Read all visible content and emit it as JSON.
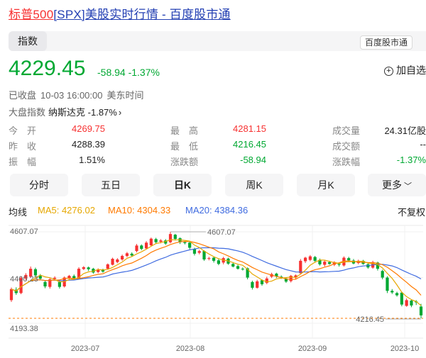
{
  "title": {
    "highlight": "标普500",
    "rest": "[SPX]美股实时行情 - 百度股市通"
  },
  "tab": {
    "label": "指数"
  },
  "badge": {
    "label": "百度股市通"
  },
  "quote": {
    "price": "4229.45",
    "change": "-58.94",
    "change_pct": "-1.37%"
  },
  "add_watch": {
    "label": "加自选"
  },
  "status": {
    "state": "已收盘",
    "time": "10-03 16:00:00",
    "zone": "美东时间"
  },
  "market": {
    "label": "大盘指数",
    "name": "纳斯达克",
    "change": "-1.87%"
  },
  "stats": {
    "open": {
      "label": "今　开",
      "value": "4269.75"
    },
    "prev_close": {
      "label": "昨　收",
      "value": "4288.39"
    },
    "amplitude": {
      "label": "振　幅",
      "value": "1.51%"
    },
    "high": {
      "label": "最　高",
      "value": "4281.15"
    },
    "low": {
      "label": "最　低",
      "value": "4216.45"
    },
    "change_amt": {
      "label": "涨跌额",
      "value": "-58.94"
    },
    "volume": {
      "label": "成交量",
      "value": "24.31亿股"
    },
    "turnover": {
      "label": "成交额",
      "value": "--"
    },
    "change_pct": {
      "label": "涨跌幅",
      "value": "-1.37%"
    }
  },
  "period_tabs": [
    "分时",
    "五日",
    "日K",
    "周K",
    "月K",
    "更多"
  ],
  "active_period": "日K",
  "ma": {
    "label": "均线",
    "ma5": "MA5: 4276.02",
    "ma10": "MA10: 4304.33",
    "ma20": "MA20: 4384.36"
  },
  "adjust": {
    "label": "不复权"
  },
  "colors": {
    "up": "#f73131",
    "down": "#00a832",
    "ma5": "#e6a700",
    "ma10": "#ff7a00",
    "ma20": "#3f6be0",
    "accent": "#2440b3"
  },
  "chart_data": {
    "type": "candlestick",
    "y_ticks": [
      "4607.07",
      "4400.23",
      "4193.38"
    ],
    "x_ticks": [
      "2023-07",
      "2023-08",
      "2023-09",
      "2023-10"
    ],
    "ylim": [
      4193.38,
      4607.07
    ],
    "annotations": [
      {
        "label": "4607.07"
      },
      {
        "label": "4216.45"
      }
    ],
    "candles": [
      {
        "o": 4298,
        "c": 4348,
        "h": 4355,
        "l": 4290
      },
      {
        "o": 4345,
        "c": 4330,
        "h": 4356,
        "l": 4322
      },
      {
        "o": 4330,
        "c": 4398,
        "h": 4405,
        "l": 4325
      },
      {
        "o": 4396,
        "c": 4412,
        "h": 4420,
        "l": 4388
      },
      {
        "o": 4404,
        "c": 4440,
        "h": 4450,
        "l": 4398
      },
      {
        "o": 4438,
        "c": 4410,
        "h": 4445,
        "l": 4402
      },
      {
        "o": 4410,
        "c": 4395,
        "h": 4416,
        "l": 4388
      },
      {
        "o": 4380,
        "c": 4360,
        "h": 4386,
        "l": 4352
      },
      {
        "o": 4358,
        "c": 4392,
        "h": 4398,
        "l": 4350
      },
      {
        "o": 4394,
        "c": 4399,
        "h": 4406,
        "l": 4390
      },
      {
        "o": 4380,
        "c": 4358,
        "h": 4384,
        "l": 4350
      },
      {
        "o": 4360,
        "c": 4400,
        "h": 4405,
        "l": 4355
      },
      {
        "o": 4398,
        "c": 4408,
        "h": 4412,
        "l": 4393
      },
      {
        "o": 4407,
        "c": 4396,
        "h": 4414,
        "l": 4391
      },
      {
        "o": 4398,
        "c": 4440,
        "h": 4447,
        "l": 4393
      },
      {
        "o": 4439,
        "c": 4447,
        "h": 4452,
        "l": 4434
      },
      {
        "o": 4446,
        "c": 4438,
        "h": 4450,
        "l": 4430
      },
      {
        "o": 4440,
        "c": 4423,
        "h": 4444,
        "l": 4418
      },
      {
        "o": 4425,
        "c": 4436,
        "h": 4442,
        "l": 4420
      },
      {
        "o": 4437,
        "c": 4427,
        "h": 4440,
        "l": 4422
      },
      {
        "o": 4440,
        "c": 4460,
        "h": 4464,
        "l": 4436
      },
      {
        "o": 4458,
        "c": 4485,
        "h": 4490,
        "l": 4455
      },
      {
        "o": 4470,
        "c": 4482,
        "h": 4488,
        "l": 4465
      },
      {
        "o": 4482,
        "c": 4498,
        "h": 4504,
        "l": 4476
      },
      {
        "o": 4498,
        "c": 4510,
        "h": 4516,
        "l": 4492
      },
      {
        "o": 4508,
        "c": 4500,
        "h": 4514,
        "l": 4494
      },
      {
        "o": 4520,
        "c": 4545,
        "h": 4552,
        "l": 4514
      },
      {
        "o": 4545,
        "c": 4530,
        "h": 4550,
        "l": 4524
      },
      {
        "o": 4532,
        "c": 4558,
        "h": 4565,
        "l": 4528
      },
      {
        "o": 4546,
        "c": 4576,
        "h": 4581,
        "l": 4540
      },
      {
        "o": 4574,
        "c": 4560,
        "h": 4580,
        "l": 4552
      },
      {
        "o": 4562,
        "c": 4568,
        "h": 4574,
        "l": 4555
      },
      {
        "o": 4568,
        "c": 4554,
        "h": 4574,
        "l": 4548
      },
      {
        "o": 4560,
        "c": 4597,
        "h": 4607,
        "l": 4555
      },
      {
        "o": 4594,
        "c": 4575,
        "h": 4598,
        "l": 4568
      },
      {
        "o": 4578,
        "c": 4560,
        "h": 4582,
        "l": 4552
      },
      {
        "o": 4560,
        "c": 4556,
        "h": 4566,
        "l": 4550
      },
      {
        "o": 4558,
        "c": 4535,
        "h": 4562,
        "l": 4528
      },
      {
        "o": 4530,
        "c": 4508,
        "h": 4535,
        "l": 4500
      },
      {
        "o": 4512,
        "c": 4520,
        "h": 4526,
        "l": 4505
      },
      {
        "o": 4520,
        "c": 4482,
        "h": 4524,
        "l": 4476
      },
      {
        "o": 4486,
        "c": 4488,
        "h": 4494,
        "l": 4478
      },
      {
        "o": 4490,
        "c": 4476,
        "h": 4494,
        "l": 4468
      },
      {
        "o": 4478,
        "c": 4462,
        "h": 4484,
        "l": 4456
      },
      {
        "o": 4468,
        "c": 4488,
        "h": 4494,
        "l": 4460
      },
      {
        "o": 4486,
        "c": 4463,
        "h": 4490,
        "l": 4458
      },
      {
        "o": 4462,
        "c": 4450,
        "h": 4470,
        "l": 4446
      },
      {
        "o": 4452,
        "c": 4440,
        "h": 4458,
        "l": 4436
      },
      {
        "o": 4440,
        "c": 4438,
        "h": 4446,
        "l": 4432
      },
      {
        "o": 4442,
        "c": 4400,
        "h": 4446,
        "l": 4392
      },
      {
        "o": 4380,
        "c": 4354,
        "h": 4386,
        "l": 4346
      },
      {
        "o": 4354,
        "c": 4383,
        "h": 4390,
        "l": 4350
      },
      {
        "o": 4388,
        "c": 4370,
        "h": 4392,
        "l": 4363
      },
      {
        "o": 4376,
        "c": 4396,
        "h": 4404,
        "l": 4370
      },
      {
        "o": 4404,
        "c": 4416,
        "h": 4422,
        "l": 4398
      },
      {
        "o": 4418,
        "c": 4405,
        "h": 4422,
        "l": 4398
      },
      {
        "o": 4404,
        "c": 4400,
        "h": 4410,
        "l": 4394
      },
      {
        "o": 4396,
        "c": 4382,
        "h": 4402,
        "l": 4376
      },
      {
        "o": 4384,
        "c": 4408,
        "h": 4412,
        "l": 4378
      },
      {
        "o": 4400,
        "c": 4410,
        "h": 4414,
        "l": 4392
      },
      {
        "o": 4420,
        "c": 4476,
        "h": 4484,
        "l": 4414
      },
      {
        "o": 4474,
        "c": 4490,
        "h": 4494,
        "l": 4466
      },
      {
        "o": 4480,
        "c": 4496,
        "h": 4502,
        "l": 4474
      },
      {
        "o": 4493,
        "c": 4476,
        "h": 4498,
        "l": 4470
      },
      {
        "o": 4480,
        "c": 4460,
        "h": 4486,
        "l": 4454
      },
      {
        "o": 4458,
        "c": 4472,
        "h": 4478,
        "l": 4450
      },
      {
        "o": 4470,
        "c": 4462,
        "h": 4476,
        "l": 4458
      },
      {
        "o": 4458,
        "c": 4470,
        "h": 4474,
        "l": 4452
      },
      {
        "o": 4462,
        "c": 4458,
        "h": 4468,
        "l": 4450
      },
      {
        "o": 4455,
        "c": 4490,
        "h": 4496,
        "l": 4450
      },
      {
        "o": 4488,
        "c": 4478,
        "h": 4494,
        "l": 4470
      },
      {
        "o": 4477,
        "c": 4464,
        "h": 4484,
        "l": 4460
      },
      {
        "o": 4466,
        "c": 4476,
        "h": 4481,
        "l": 4460
      },
      {
        "o": 4476,
        "c": 4462,
        "h": 4480,
        "l": 4458
      },
      {
        "o": 4460,
        "c": 4446,
        "h": 4466,
        "l": 4440
      },
      {
        "o": 4445,
        "c": 4470,
        "h": 4476,
        "l": 4440
      },
      {
        "o": 4468,
        "c": 4440,
        "h": 4472,
        "l": 4432
      },
      {
        "o": 4430,
        "c": 4400,
        "h": 4436,
        "l": 4392
      },
      {
        "o": 4400,
        "c": 4340,
        "h": 4406,
        "l": 4330
      },
      {
        "o": 4340,
        "c": 4333,
        "h": 4348,
        "l": 4326
      },
      {
        "o": 4330,
        "c": 4320,
        "h": 4336,
        "l": 4314
      },
      {
        "o": 4332,
        "c": 4278,
        "h": 4336,
        "l": 4270
      },
      {
        "o": 4272,
        "c": 4298,
        "h": 4306,
        "l": 4268
      },
      {
        "o": 4296,
        "c": 4274,
        "h": 4302,
        "l": 4266
      },
      {
        "o": 4292,
        "c": 4288,
        "h": 4298,
        "l": 4276
      },
      {
        "o": 4269,
        "c": 4229,
        "h": 4281,
        "l": 4216
      }
    ]
  }
}
